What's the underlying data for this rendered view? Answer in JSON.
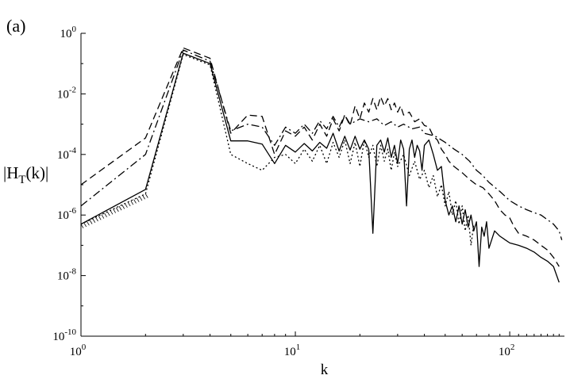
{
  "panel_label": "(a)",
  "chart_data": {
    "type": "line",
    "xlabel": "k",
    "ylabel": "|H_T(k)|",
    "xscale": "log",
    "yscale": "log",
    "xlim": [
      1,
      180
    ],
    "ylim": [
      1e-10,
      1
    ],
    "x_ticks": [
      {
        "value": 1,
        "base": "10",
        "exp": "0"
      },
      {
        "value": 10,
        "base": "10",
        "exp": "1"
      },
      {
        "value": 100,
        "base": "10",
        "exp": "2"
      }
    ],
    "y_ticks": [
      {
        "value": 1,
        "base": "10",
        "exp": "0"
      },
      {
        "value": 0.01,
        "base": "10",
        "exp": "-2"
      },
      {
        "value": 0.0001,
        "base": "10",
        "exp": "-4"
      },
      {
        "value": 1e-06,
        "base": "10",
        "exp": "-6"
      },
      {
        "value": 1e-08,
        "base": "10",
        "exp": "-8"
      },
      {
        "value": 1e-10,
        "base": "10",
        "exp": "-10"
      }
    ],
    "grid": false,
    "legend": "none",
    "series": [
      {
        "style": "solid",
        "points": [
          [
            1,
            5e-07
          ],
          [
            2,
            7e-06
          ],
          [
            3,
            0.22
          ],
          [
            4,
            0.1
          ],
          [
            5,
            0.00028
          ],
          [
            6,
            0.00028
          ],
          [
            7,
            0.00022
          ],
          [
            8,
            5e-05
          ],
          [
            9,
            0.0002
          ],
          [
            10,
            0.00012
          ],
          [
            11,
            0.00023
          ],
          [
            12,
            0.00013
          ],
          [
            13,
            0.00025
          ],
          [
            14,
            0.00016
          ],
          [
            15,
            0.0005
          ],
          [
            16,
            0.00013
          ],
          [
            17,
            0.0004
          ],
          [
            18,
            0.00014
          ],
          [
            19,
            0.0004
          ],
          [
            20,
            0.00015
          ],
          [
            21,
            0.0003
          ],
          [
            22,
            0.00015
          ],
          [
            23,
            2.5e-07
          ],
          [
            24,
            0.0002
          ],
          [
            25,
            0.0003
          ],
          [
            26,
            0.00012
          ],
          [
            27,
            0.00035
          ],
          [
            28,
            8e-05
          ],
          [
            29,
            0.0002
          ],
          [
            30,
            5e-05
          ],
          [
            31,
            0.0003
          ],
          [
            32,
            0.00015
          ],
          [
            33,
            2e-06
          ],
          [
            34,
            0.00015
          ],
          [
            35,
            0.0003
          ],
          [
            36,
            8e-05
          ],
          [
            37,
            0.0002
          ],
          [
            38,
            0.00013
          ],
          [
            39,
            3e-05
          ],
          [
            40,
            0.0002
          ],
          [
            42,
            0.0003
          ],
          [
            44,
            0.0001
          ],
          [
            46,
            3e-05
          ],
          [
            48,
            4e-05
          ],
          [
            50,
            3e-06
          ],
          [
            52,
            1e-06
          ],
          [
            54,
            2e-06
          ],
          [
            56,
            6e-07
          ],
          [
            58,
            2e-06
          ],
          [
            60,
            5e-07
          ],
          [
            62,
            1.5e-06
          ],
          [
            64,
            4e-07
          ],
          [
            66,
            1e-06
          ],
          [
            68,
            3e-07
          ],
          [
            70,
            6e-07
          ],
          [
            72,
            2e-08
          ],
          [
            74,
            4e-07
          ],
          [
            76,
            2e-07
          ],
          [
            78,
            6e-07
          ],
          [
            80,
            8e-08
          ],
          [
            85,
            3e-07
          ],
          [
            90,
            2e-07
          ],
          [
            100,
            1.2e-07
          ],
          [
            110,
            1e-07
          ],
          [
            120,
            8e-08
          ],
          [
            130,
            6e-08
          ],
          [
            140,
            4e-08
          ],
          [
            150,
            3e-08
          ],
          [
            160,
            2e-08
          ],
          [
            170,
            6e-09
          ]
        ]
      },
      {
        "style": "dashed",
        "points": [
          [
            1,
            1e-05
          ],
          [
            2,
            0.00035
          ],
          [
            3,
            0.33
          ],
          [
            4,
            0.15
          ],
          [
            5,
            0.0005
          ],
          [
            6,
            0.002
          ],
          [
            7,
            0.0018
          ],
          [
            8,
            0.0001
          ],
          [
            9,
            0.0006
          ],
          [
            10,
            0.0004
          ],
          [
            11,
            0.0008
          ],
          [
            12,
            0.0003
          ],
          [
            13,
            0.001
          ],
          [
            14,
            0.0004
          ],
          [
            15,
            0.0015
          ],
          [
            16,
            0.0006
          ],
          [
            17,
            0.002
          ],
          [
            18,
            0.0009
          ],
          [
            19,
            0.004
          ],
          [
            20,
            0.0015
          ],
          [
            21,
            0.005
          ],
          [
            22,
            0.0025
          ],
          [
            23,
            0.007
          ],
          [
            24,
            0.003
          ],
          [
            25,
            0.008
          ],
          [
            26,
            0.004
          ],
          [
            27,
            0.007
          ],
          [
            28,
            0.003
          ],
          [
            29,
            0.005
          ],
          [
            30,
            0.0025
          ],
          [
            31,
            0.004
          ],
          [
            32,
            0.002
          ],
          [
            34,
            0.0025
          ],
          [
            36,
            0.0012
          ],
          [
            38,
            0.0015
          ],
          [
            40,
            0.0009
          ],
          [
            42,
            0.0008
          ],
          [
            44,
            0.0004
          ],
          [
            46,
            0.0003
          ],
          [
            48,
            0.00015
          ],
          [
            50,
            0.0001
          ],
          [
            52,
            6e-05
          ],
          [
            55,
            4e-05
          ],
          [
            60,
            2.5e-05
          ],
          [
            65,
            1.5e-05
          ],
          [
            70,
            1e-05
          ],
          [
            75,
            8e-06
          ],
          [
            80,
            5e-06
          ],
          [
            85,
            3e-06
          ],
          [
            90,
            1.5e-06
          ],
          [
            95,
            1e-06
          ],
          [
            100,
            8e-07
          ],
          [
            105,
            4e-07
          ],
          [
            110,
            2.5e-07
          ],
          [
            120,
            2e-07
          ],
          [
            130,
            1.5e-07
          ],
          [
            140,
            1e-07
          ],
          [
            150,
            7e-08
          ],
          [
            160,
            4e-08
          ],
          [
            170,
            2e-08
          ]
        ]
      },
      {
        "style": "dashdot",
        "points": [
          [
            1,
            2e-06
          ],
          [
            2,
            0.0001
          ],
          [
            3,
            0.28
          ],
          [
            4,
            0.12
          ],
          [
            5,
            0.0006
          ],
          [
            6,
            0.001
          ],
          [
            7,
            0.0008
          ],
          [
            8,
            0.0002
          ],
          [
            9,
            0.0008
          ],
          [
            10,
            0.0005
          ],
          [
            11,
            0.001
          ],
          [
            12,
            0.0005
          ],
          [
            13,
            0.0013
          ],
          [
            14,
            0.0007
          ],
          [
            15,
            0.0018
          ],
          [
            16,
            0.0008
          ],
          [
            17,
            0.002
          ],
          [
            18,
            0.001
          ],
          [
            20,
            0.0015
          ],
          [
            22,
            0.0012
          ],
          [
            24,
            0.0015
          ],
          [
            26,
            0.0009
          ],
          [
            28,
            0.0012
          ],
          [
            30,
            0.0008
          ],
          [
            32,
            0.001
          ],
          [
            35,
            0.0007
          ],
          [
            38,
            0.0008
          ],
          [
            40,
            0.0005
          ],
          [
            45,
            0.0004
          ],
          [
            50,
            0.00025
          ],
          [
            55,
            0.00015
          ],
          [
            60,
            0.0001
          ],
          [
            65,
            6e-05
          ],
          [
            70,
            3e-05
          ],
          [
            75,
            2e-05
          ],
          [
            80,
            1.2e-05
          ],
          [
            90,
            6e-06
          ],
          [
            100,
            3e-06
          ],
          [
            110,
            2e-06
          ],
          [
            120,
            1.5e-06
          ],
          [
            130,
            1.2e-06
          ],
          [
            140,
            1e-06
          ],
          [
            150,
            7e-07
          ],
          [
            160,
            5e-07
          ],
          [
            170,
            3e-07
          ],
          [
            175,
            1.5e-07
          ]
        ]
      },
      {
        "style": "dotted",
        "points": [
          [
            1,
            5e-07
          ],
          [
            2,
            5e-06
          ],
          [
            3,
            0.2
          ],
          [
            4,
            0.09
          ],
          [
            5,
            0.0001
          ],
          [
            6,
            5e-05
          ],
          [
            7,
            3e-05
          ],
          [
            8,
            8e-05
          ],
          [
            9,
            0.0001
          ],
          [
            10,
            5e-05
          ],
          [
            11,
            0.00015
          ],
          [
            12,
            6e-05
          ],
          [
            13,
            0.0002
          ],
          [
            14,
            5e-05
          ],
          [
            15,
            0.00025
          ],
          [
            16,
            8e-05
          ],
          [
            17,
            0.0003
          ],
          [
            18,
            5e-05
          ],
          [
            19,
            0.00025
          ],
          [
            20,
            4e-05
          ],
          [
            21,
            0.0003
          ],
          [
            22,
            8e-05
          ],
          [
            23,
            0.0002
          ],
          [
            24,
            4e-05
          ],
          [
            25,
            0.0002
          ],
          [
            26,
            6e-05
          ],
          [
            27,
            0.00015
          ],
          [
            28,
            3e-05
          ],
          [
            29,
            0.00012
          ],
          [
            30,
            4e-05
          ],
          [
            32,
            0.0001
          ],
          [
            34,
            2e-05
          ],
          [
            36,
            6e-05
          ],
          [
            38,
            1.5e-05
          ],
          [
            40,
            3e-05
          ],
          [
            42,
            8e-06
          ],
          [
            44,
            2e-05
          ],
          [
            46,
            4e-06
          ],
          [
            48,
            1e-05
          ],
          [
            50,
            2e-06
          ],
          [
            52,
            6e-06
          ],
          [
            54,
            1e-06
          ],
          [
            56,
            3e-06
          ],
          [
            58,
            5e-07
          ],
          [
            60,
            2e-06
          ],
          [
            62,
            3e-07
          ],
          [
            64,
            1e-06
          ],
          [
            66,
            1e-07
          ],
          [
            68,
            5e-07
          ]
        ]
      }
    ]
  }
}
